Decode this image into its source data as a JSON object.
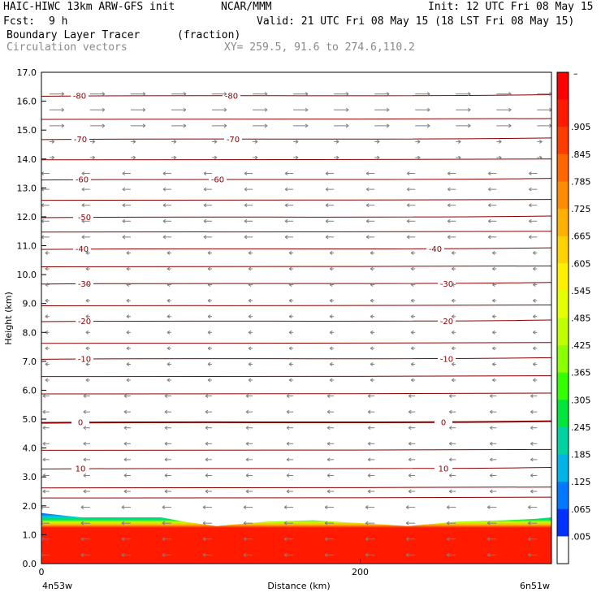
{
  "header": {
    "model": "HAIC-HIWC 13km ARW-GFS init",
    "org": "NCAR/MMM",
    "init": "Init: 12 UTC Fri 08 May 15",
    "fcst_label": "Fcst:",
    "fcst_value": "9 h",
    "valid": "Valid: 21 UTC Fri 08 May 15 (18 LST Fri 08 May 15)",
    "field": "Boundary Layer Tracer",
    "field_units": "(fraction)",
    "overlay": "Circulation vectors",
    "xsec": "XY= 259.5, 91.6 to 274.6,110.2"
  },
  "colors": {
    "contour": "#8b0000",
    "vector": "#7f7f7f",
    "fill_high": "#ff1a00"
  },
  "chart_data": {
    "type": "heatmap",
    "xlabel": "Distance (km)",
    "ylabel": "Height (km)",
    "x_ticks": [
      "0",
      "200"
    ],
    "x_positions_km": [
      0,
      200
    ],
    "xlim": [
      0,
      320
    ],
    "ylim": [
      0,
      17
    ],
    "y_ticks": [
      "0.0",
      "1.0",
      "2.0",
      "3.0",
      "4.0",
      "5.0",
      "6.0",
      "7.0",
      "8.0",
      "9.0",
      "10.0",
      "11.0",
      "12.0",
      "13.0",
      "14.0",
      "15.0",
      "16.0",
      "17.0"
    ],
    "x_end_labels": {
      "left": "4n53w",
      "right": "6n51w"
    },
    "colorbar": {
      "top_label": "–",
      "labels": [
        ".905",
        ".845",
        ".785",
        ".725",
        ".665",
        ".605",
        ".545",
        ".485",
        ".425",
        ".365",
        ".305",
        ".245",
        ".185",
        ".125",
        ".065",
        ".005"
      ],
      "colors": [
        "#ff0000",
        "#ff1a00",
        "#ff3c00",
        "#ff6600",
        "#ff8c00",
        "#ffb000",
        "#ffd200",
        "#fff000",
        "#e6ff00",
        "#c0ff00",
        "#8cff00",
        "#33ff00",
        "#00e63c",
        "#00d2a0",
        "#00b4e6",
        "#0078ff",
        "#0032ff",
        "#ffffff"
      ]
    },
    "temperature_contours": [
      {
        "label": "-80",
        "height_km": 16.2
      },
      {
        "label": "-70",
        "height_km": 14.7
      },
      {
        "label": "-60",
        "height_km": 13.3
      },
      {
        "label": "-50",
        "height_km": 12.0
      },
      {
        "label": "-40",
        "height_km": 10.9
      },
      {
        "label": "-30",
        "height_km": 9.7
      },
      {
        "label": "-20",
        "height_km": 8.4
      },
      {
        "label": "-10",
        "height_km": 7.1
      },
      {
        "label": "0",
        "height_km": 4.9
      },
      {
        "label": "10",
        "height_km": 3.3
      }
    ],
    "boundary_layer_top_km": [
      1.75,
      1.6,
      1.6,
      1.6,
      1.45,
      1.3,
      1.45,
      1.5,
      1.4,
      1.3,
      1.45,
      1.5,
      1.55,
      1.6
    ],
    "boundary_layer_x_km": [
      0,
      25,
      50,
      75,
      90,
      110,
      140,
      170,
      200,
      230,
      260,
      290,
      310,
      320
    ]
  }
}
